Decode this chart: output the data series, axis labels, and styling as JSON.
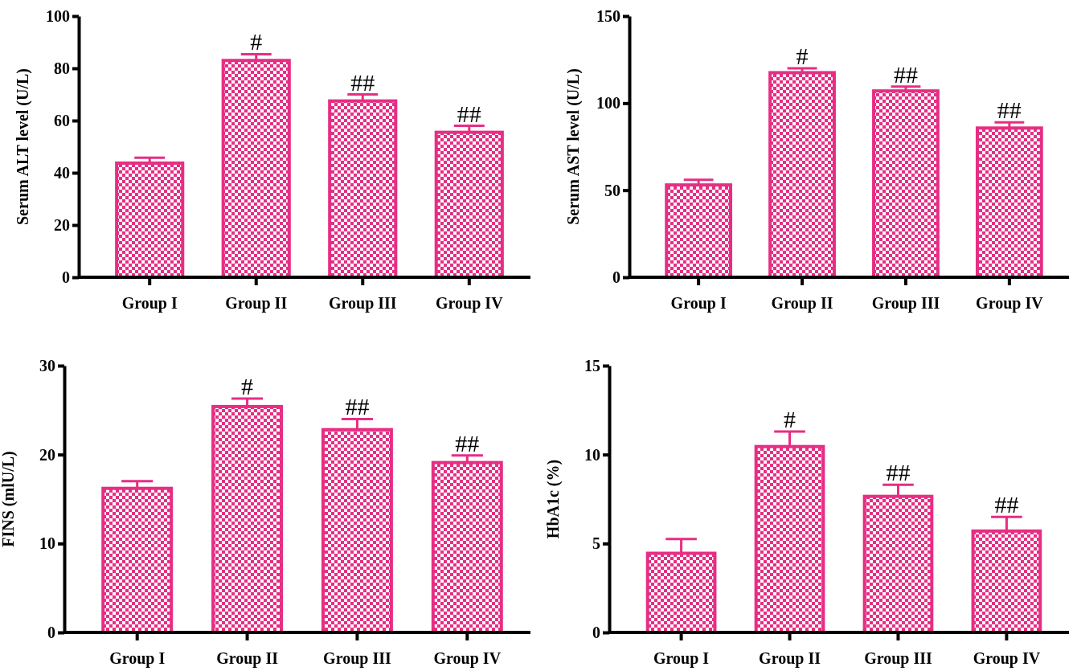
{
  "chart_data": [
    {
      "type": "bar",
      "ylabel": "Serum ALT level (U/L)",
      "categories": [
        "Group I",
        "Group II",
        "Group III",
        "Group IV"
      ],
      "values": [
        43.7,
        83,
        67.5,
        55.5
      ],
      "errors": [
        2.1,
        2.4,
        2.5,
        2.5
      ],
      "color": "#e62e84",
      "ylim": [
        0,
        100
      ],
      "yticks": [
        0,
        20,
        40,
        60,
        80,
        100
      ],
      "annotations": [
        {
          "text": "#",
          "x": "Group II",
          "y": 83
        },
        {
          "text": "##",
          "x": "Group III",
          "y": 67.5
        },
        {
          "text": "##",
          "x": "Group IV",
          "y": 55.5
        }
      ]
    },
    {
      "type": "bar",
      "ylabel": "Serum AST level (U/L)",
      "categories": [
        "Group I",
        "Group II",
        "Group III",
        "Group IV"
      ],
      "values": [
        53,
        117.5,
        107,
        85.7
      ],
      "errors": [
        3,
        2.5,
        2.5,
        3.3
      ],
      "color": "#e62e84",
      "ylim": [
        0,
        150
      ],
      "yticks": [
        0,
        50,
        100,
        150
      ],
      "annotations": [
        {
          "text": "#",
          "x": "Group II",
          "y": 117.5
        },
        {
          "text": "##",
          "x": "Group III",
          "y": 107
        },
        {
          "text": "##",
          "x": "Group IV",
          "y": 85.7
        }
      ]
    },
    {
      "type": "bar",
      "ylabel": "FINS (mlU/L)",
      "categories": [
        "Group I",
        "Group II",
        "Group III",
        "Group IV"
      ],
      "values": [
        16.2,
        25.4,
        22.8,
        19.1
      ],
      "errors": [
        0.8,
        0.9,
        1.2,
        0.8
      ],
      "color": "#e62e84",
      "ylim": [
        0,
        30
      ],
      "yticks": [
        0,
        10,
        20,
        30
      ],
      "annotations": [
        {
          "text": "#",
          "x": "Group II",
          "y": 25.4
        },
        {
          "text": "##",
          "x": "Group III",
          "y": 22.8
        },
        {
          "text": "##",
          "x": "Group IV",
          "y": 19.1
        }
      ]
    },
    {
      "type": "bar",
      "ylabel": "HbA1c (%)",
      "categories": [
        "Group I",
        "Group II",
        "Group III",
        "Group IV"
      ],
      "values": [
        4.45,
        10.45,
        7.65,
        5.7
      ],
      "errors": [
        0.8,
        0.85,
        0.65,
        0.8
      ],
      "color": "#e62e84",
      "ylim": [
        0,
        15
      ],
      "yticks": [
        0,
        5,
        10,
        15
      ],
      "annotations": [
        {
          "text": "#",
          "x": "Group II",
          "y": 10.45
        },
        {
          "text": "##",
          "x": "Group III",
          "y": 7.65
        },
        {
          "text": "##",
          "x": "Group IV",
          "y": 5.7
        }
      ]
    }
  ]
}
